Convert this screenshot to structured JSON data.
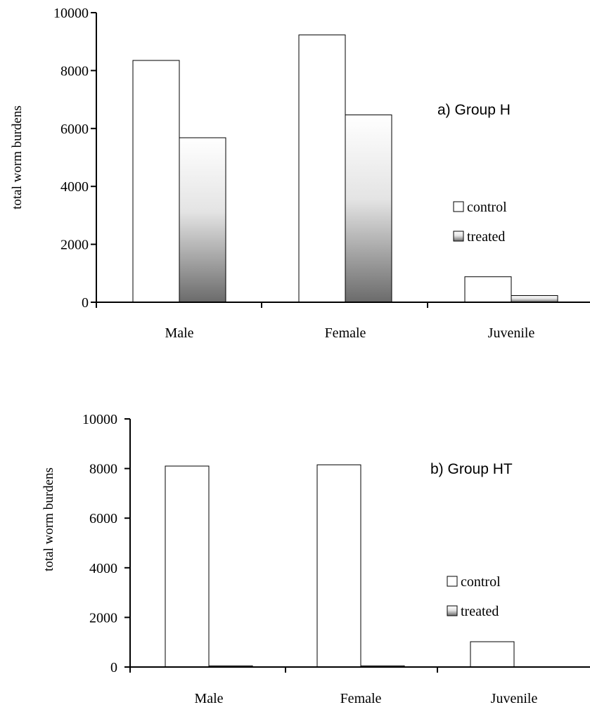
{
  "chart_data": [
    {
      "type": "bar",
      "title": "a) Group H",
      "ylabel": "total worm burdens",
      "xlabel": "",
      "categories": [
        "Male",
        "Female",
        "Juvenile"
      ],
      "ylim": [
        0,
        10000
      ],
      "yticks": [
        "0",
        "2000",
        "4000",
        "6000",
        "8000",
        "10000"
      ],
      "series": [
        {
          "name": "control",
          "values": [
            8350,
            9230,
            880
          ]
        },
        {
          "name": "treated",
          "values": [
            5680,
            6470,
            230
          ]
        }
      ],
      "legend": {
        "placement": "right",
        "items": [
          "control",
          "treated"
        ]
      },
      "grid": false
    },
    {
      "type": "bar",
      "title": "b) Group HT",
      "ylabel": "total worm burdens",
      "xlabel": "",
      "categories": [
        "Male",
        "Female",
        "Juvenile"
      ],
      "ylim": [
        0,
        10000
      ],
      "yticks": [
        "0",
        "2000",
        "4000",
        "6000",
        "8000",
        "10000"
      ],
      "series": [
        {
          "name": "control",
          "values": [
            8100,
            8150,
            1020
          ]
        },
        {
          "name": "treated",
          "values": [
            50,
            50,
            0
          ]
        }
      ],
      "legend": {
        "placement": "right",
        "items": [
          "control",
          "treated"
        ]
      },
      "grid": false
    }
  ],
  "colors": {
    "control_fill": "#ffffff",
    "treated_top": "#ffffff",
    "treated_bottom": "#6b6b6b",
    "axis": "#000000"
  }
}
